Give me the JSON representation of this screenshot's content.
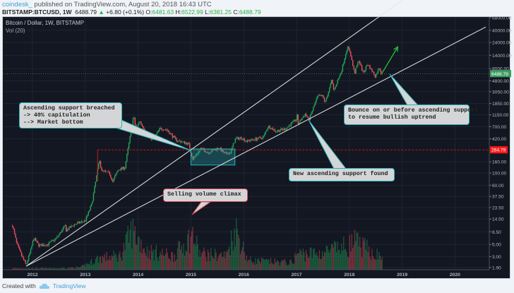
{
  "header": {
    "user": "coindesk_",
    "published": " published on TradingView.com, August 20, 2018 16:43 UTC",
    "symbol": "BITSTAMP:BTCUSD, 1W",
    "last": "6488.79",
    "change": "+6.80 (+0.1%)",
    "o_label": "O:",
    "o": "6481.63",
    "h_label": "H:",
    "h": "6522.99",
    "l_label": "L:",
    "l": "6381.25",
    "c_label": "C:",
    "c": "6488.79"
  },
  "chart_title": "Bitcoin / Dollar, 1W, BITSTAMP",
  "volume_label": "Vol (20)",
  "footer": {
    "created_with": "Created with",
    "brand": "TradingView",
    "icon": "tradingview-cloud-icon"
  },
  "colors": {
    "up": "#26a65b",
    "down": "#e8505b",
    "background": "#131722",
    "grid": "#1f2433",
    "accent": "#26b3b7",
    "last_price": "#3c9e62",
    "level_line": "#ff1a1a",
    "arrow": "#22c83a"
  },
  "chart_data": {
    "type": "candlestick",
    "scale": "log",
    "grid": true,
    "x_ticks": [
      "2012",
      "2013",
      "2014",
      "2015",
      "2016",
      "2017",
      "2018",
      "2019",
      "2020"
    ],
    "y_ticks": [
      "68000.00",
      "40000.00",
      "24000.00",
      "14000.00",
      "8000.00",
      "4800.00",
      "3050.00",
      "1850.00",
      "1150.00",
      "700.00",
      "420.00",
      "160.00",
      "100.00",
      "60.00",
      "37.50",
      "23.50",
      "14.50",
      "8.50",
      "5.00",
      "3.00",
      "1.90"
    ],
    "y_tick_values": [
      68000,
      40000,
      24000,
      14000,
      8000,
      4800,
      3050,
      1850,
      1150,
      700,
      420,
      160,
      100,
      60,
      37.5,
      23.5,
      14.5,
      8.5,
      5,
      3,
      1.9
    ],
    "ylim": [
      1.9,
      68000
    ],
    "xlim": [
      "2011-07-01",
      "2020-10-01"
    ],
    "last_price": {
      "value": 6488.79,
      "label": "6488.79"
    },
    "level": {
      "value": 264.79,
      "label": "264.79",
      "from": "2013-03-25"
    },
    "price_path": [
      [
        "2011-08-15",
        11
      ],
      [
        "2011-09-15",
        5
      ],
      [
        "2011-10-20",
        3
      ],
      [
        "2011-11-18",
        2.1
      ],
      [
        "2011-12-20",
        4
      ],
      [
        "2012-01-10",
        6.5
      ],
      [
        "2012-02-15",
        4.8
      ],
      [
        "2012-04-15",
        5
      ],
      [
        "2012-06-15",
        6.5
      ],
      [
        "2012-08-15",
        11
      ],
      [
        "2012-08-20",
        9
      ],
      [
        "2012-10-15",
        11.5
      ],
      [
        "2012-12-31",
        13.5
      ],
      [
        "2013-02-15",
        27
      ],
      [
        "2013-04-08",
        180
      ],
      [
        "2013-04-20",
        110
      ],
      [
        "2013-06-15",
        100
      ],
      [
        "2013-07-08",
        70
      ],
      [
        "2013-08-15",
        115
      ],
      [
        "2013-10-01",
        125
      ],
      [
        "2013-11-30",
        1100
      ],
      [
        "2013-12-18",
        600
      ],
      [
        "2014-01-10",
        900
      ],
      [
        "2014-02-25",
        550
      ],
      [
        "2014-04-10",
        400
      ],
      [
        "2014-06-01",
        650
      ],
      [
        "2014-07-15",
        620
      ],
      [
        "2014-09-20",
        400
      ],
      [
        "2014-10-15",
        380
      ],
      [
        "2014-12-15",
        340
      ],
      [
        "2015-01-14",
        180
      ],
      [
        "2015-03-10",
        280
      ],
      [
        "2015-05-01",
        235
      ],
      [
        "2015-07-10",
        290
      ],
      [
        "2015-08-25",
        220
      ],
      [
        "2015-10-01",
        240
      ],
      [
        "2015-11-04",
        420
      ],
      [
        "2015-12-15",
        440
      ],
      [
        "2016-01-20",
        380
      ],
      [
        "2016-05-15",
        450
      ],
      [
        "2016-06-17",
        720
      ],
      [
        "2016-08-10",
        580
      ],
      [
        "2016-10-15",
        640
      ],
      [
        "2016-12-31",
        960
      ],
      [
        "2017-01-05",
        1100
      ],
      [
        "2017-01-12",
        800
      ],
      [
        "2017-03-01",
        1200
      ],
      [
        "2017-03-25",
        920
      ],
      [
        "2017-05-25",
        2500
      ],
      [
        "2017-06-30",
        2500
      ],
      [
        "2017-07-16",
        1900
      ],
      [
        "2017-09-01",
        4900
      ],
      [
        "2017-09-15",
        3200
      ],
      [
        "2017-11-08",
        7400
      ],
      [
        "2017-12-17",
        19600
      ],
      [
        "2018-01-05",
        16500
      ],
      [
        "2018-02-06",
        6500
      ],
      [
        "2018-03-05",
        11500
      ],
      [
        "2018-04-05",
        6600
      ],
      [
        "2018-05-05",
        9800
      ],
      [
        "2018-06-28",
        5800
      ],
      [
        "2018-07-25",
        8400
      ],
      [
        "2018-08-14",
        6000
      ],
      [
        "2018-08-20",
        6488.79
      ]
    ],
    "volume_relative": [
      [
        "2011-08-01",
        0.03
      ],
      [
        "2012-06-01",
        0.03
      ],
      [
        "2012-12-01",
        0.05
      ],
      [
        "2013-04-01",
        0.25
      ],
      [
        "2013-09-01",
        0.3
      ],
      [
        "2013-11-20",
        0.85
      ],
      [
        "2014-03-01",
        0.4
      ],
      [
        "2014-09-01",
        0.3
      ],
      [
        "2015-01-14",
        0.75
      ],
      [
        "2015-03-01",
        0.35
      ],
      [
        "2015-09-01",
        0.3
      ],
      [
        "2015-11-04",
        0.9
      ],
      [
        "2016-02-01",
        0.2
      ],
      [
        "2016-12-01",
        0.15
      ],
      [
        "2017-01-05",
        0.35
      ],
      [
        "2017-06-01",
        0.35
      ],
      [
        "2017-12-15",
        0.5
      ],
      [
        "2018-02-06",
        0.6
      ],
      [
        "2018-08-20",
        0.25
      ]
    ],
    "trend_lines": [
      {
        "from": [
          "2011-11-18",
          2
        ],
        "to": [
          "2019-01-01",
          140000
        ]
      },
      {
        "from": [
          "2011-11-18",
          2
        ],
        "to": [
          "2020-08-01",
          46000
        ]
      }
    ],
    "consolidation_box": {
      "from": "2015-01-01",
      "to": "2015-11-01",
      "high": 275,
      "low": 140
    },
    "arrow": {
      "from": [
        "2018-08-15",
        6700
      ],
      "to": [
        "2018-12-01",
        20000
      ]
    },
    "annotations": [
      {
        "text": "Ascending support breached\n-> 40% capitulation\n--> Market bottom",
        "target": [
          "2015-01-01",
          264.79
        ]
      },
      {
        "text": "Bounce on or before ascending support\nto resume bullish uptrend",
        "target": [
          "2018-09-01",
          6000
        ]
      },
      {
        "text": "New ascending support found",
        "target": [
          "2017-03-10",
          950
        ]
      },
      {
        "text": "Selling volume climax",
        "target": "2015-01-14 volume"
      }
    ]
  }
}
